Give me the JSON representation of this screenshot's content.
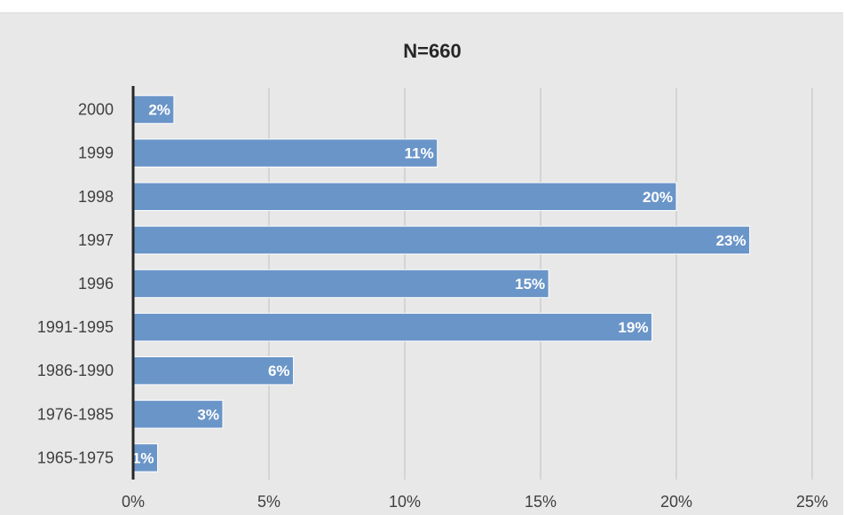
{
  "chart_data": {
    "type": "bar",
    "orientation": "horizontal",
    "title": "N=660",
    "categories": [
      "2000",
      "1999",
      "1998",
      "1997",
      "1996",
      "1991-1995",
      "1986-1990",
      "1976-1985",
      "1965-1975"
    ],
    "values": [
      1.5,
      11.2,
      20.0,
      22.7,
      15.3,
      19.1,
      5.9,
      3.3,
      0.9
    ],
    "data_labels": [
      "2%",
      "11%",
      "20%",
      "23%",
      "15%",
      "19%",
      "6%",
      "3%",
      "1%"
    ],
    "x_ticks": [
      "0%",
      "5%",
      "10%",
      "15%",
      "20%",
      "25%"
    ],
    "xlim": [
      0,
      25
    ],
    "grid": "vertical",
    "legend": "none",
    "bar_color": "#6a95c8",
    "bar_border_color": "#ffffff",
    "axis_color": "#262626",
    "gridline_color": "#bfbfbf",
    "background_color": "#e8e8e8"
  }
}
